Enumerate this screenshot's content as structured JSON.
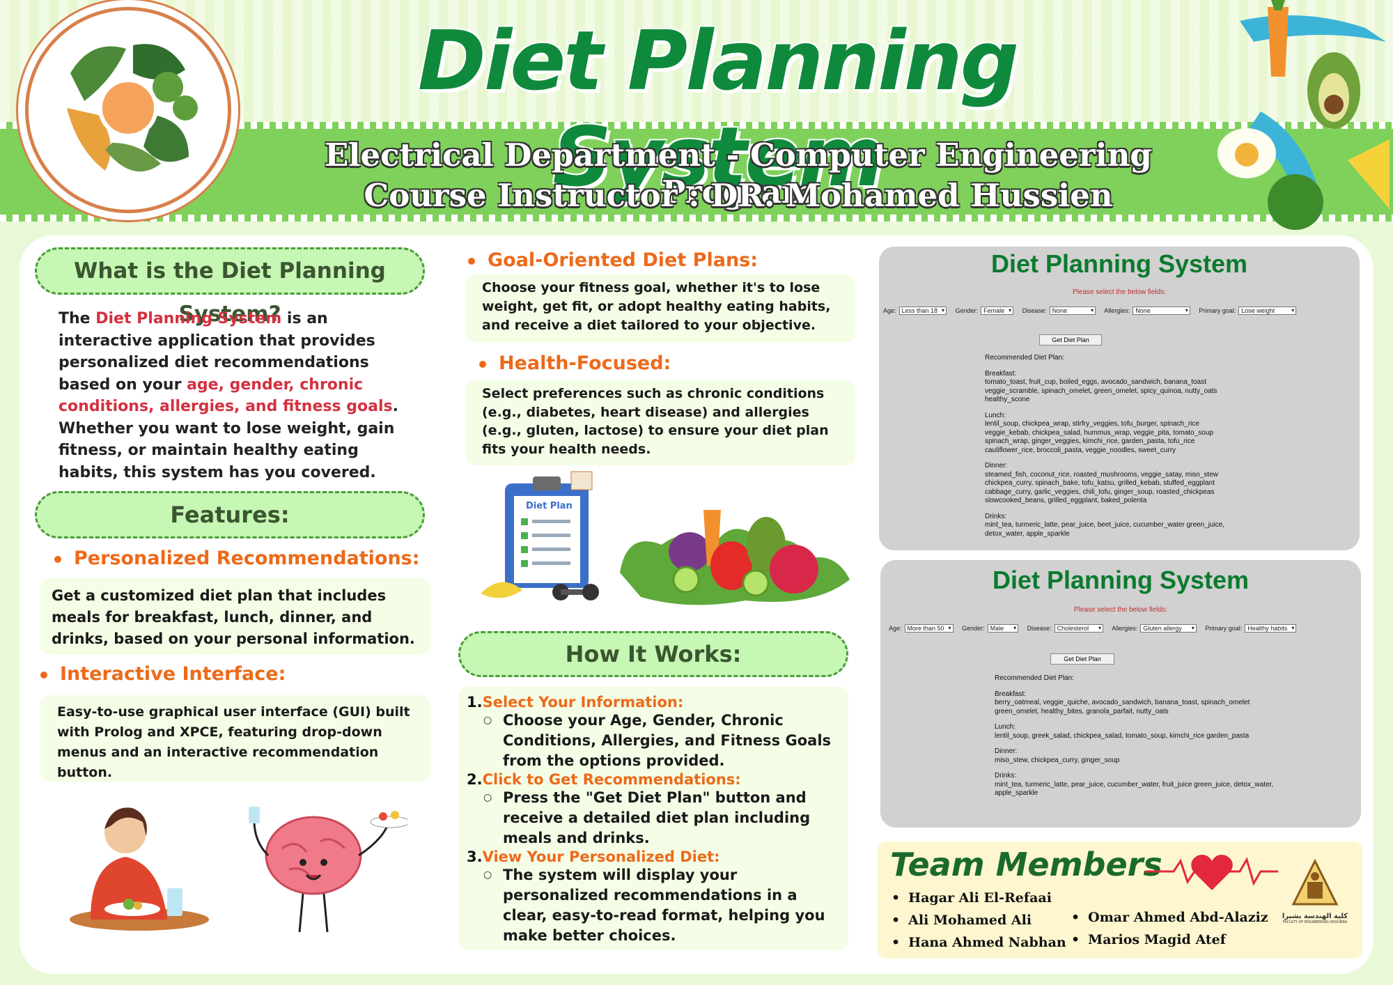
{
  "header": {
    "title": "Diet Planning System",
    "line1": "Electrical Department - Computer Engineering  Program",
    "line2": "Course Instructor : DR.  Mohamed Hussien"
  },
  "what": {
    "heading": "What is the Diet Planning System?",
    "p_the": "The ",
    "p_name": "Diet Planning System",
    "p_mid": " is an interactive application that provides personalized diet recommendations based on your ",
    "p_factors": "age, gender, chronic conditions, allergies, and fitness goals",
    "p_end": ". Whether you want to lose weight, gain fitness, or maintain healthy eating habits, this system has you covered."
  },
  "features": {
    "heading": "Features:",
    "items": [
      {
        "title": "Personalized Recommendations:",
        "text": "Get a customized diet plan that includes meals for breakfast, lunch, dinner, and drinks, based on your personal information."
      },
      {
        "title": "Interactive Interface:",
        "text": "Easy-to-use graphical user interface (GUI) built with Prolog and XPCE, featuring drop-down menus and an interactive recommendation button."
      },
      {
        "title": "Goal-Oriented Diet Plans:",
        "text": "Choose your fitness goal, whether it's to lose weight, get fit, or adopt healthy eating habits, and receive a diet tailored to your objective."
      },
      {
        "title": "Health-Focused:",
        "text": "Select preferences such as chronic conditions (e.g., diabetes, heart disease) and allergies (e.g., gluten, lactose) to ensure your diet plan fits your health needs."
      }
    ]
  },
  "clipboard_label": "Diet Plan",
  "how": {
    "heading": "How It Works:",
    "steps": [
      {
        "num": "1.",
        "title": "Select Your Information:",
        "text": "Choose your Age, Gender, Chronic Conditions, Allergies, and Fitness Goals from the options provided."
      },
      {
        "num": "2.",
        "title": "Click to Get Recommendations:",
        "text": "Press the \"Get Diet Plan\" button and receive a detailed diet plan including meals and drinks."
      },
      {
        "num": "3.",
        "title": "View Your Personalized Diet:",
        "text": "The system will display your personalized recommendations in a clear, easy-to-read format, helping you make better choices."
      }
    ]
  },
  "screens": [
    {
      "title": "Diet Planning System",
      "prompt": "Please select the below fields:",
      "labels": {
        "age": "Age:",
        "gender": "Gender:",
        "disease": "Disease:",
        "allergies": "Allergies:",
        "goal": "Primary goal:"
      },
      "values": {
        "age": "Less than 18",
        "gender": "Female",
        "disease": "None",
        "allergies": "None",
        "goal": "Lose weight"
      },
      "button": "Get Diet Plan",
      "rec_heading": "Recommended Diet Plan:",
      "breakfast_label": "Breakfast:",
      "breakfast": "tomato_toast, fruit_cup, boiled_eggs, avocado_sandwich, banana_toast veggie_scramble, spinach_omelet, green_omelet, spicy_quinoa, nutty_oats healthy_scone",
      "lunch_label": "Lunch:",
      "lunch": "lentil_soup, chickpea_wrap, stirfry_veggies, tofu_burger, spinach_rice veggie_kebab, chickpea_salad, hummus_wrap, veggie_pita, tomato_soup spinach_wrap, ginger_veggies, kimchi_rice, garden_pasta, tofu_rice cauliflower_rice, broccoli_pasta, veggie_noodles, sweet_curry",
      "dinner_label": "Dinner:",
      "dinner": "steamed_fish, coconut_rice, roasted_mushrooms, veggie_satay, miso_stew chickpea_curry, spinach_bake, tofu_katsu, grilled_kebab, stuffed_eggplant cabbage_curry, garlic_veggies, chili_tofu, ginger_soup, roasted_chickpeas slowcooked_beans, grilled_eggplant, baked_polenta",
      "drinks_label": "Drinks:",
      "drinks": "mint_tea, turmeric_latte, pear_juice, beet_juice, cucumber_water green_juice, detox_water, apple_sparkle"
    },
    {
      "title": "Diet Planning System",
      "prompt": "Please select the below fields:",
      "labels": {
        "age": "Age:",
        "gender": "Gender:",
        "disease": "Disease:",
        "allergies": "Allergies:",
        "goal": "Primary goal:"
      },
      "values": {
        "age": "More than 50",
        "gender": "Male",
        "disease": "Cholesterol",
        "allergies": "Gluten allergy",
        "goal": "Healthy habits"
      },
      "button": "Get Diet Plan",
      "rec_heading": "Recommended Diet Plan:",
      "breakfast_label": "Breakfast:",
      "breakfast": "berry_oatmeal, veggie_quiche, avocado_sandwich, banana_toast, spinach_omelet green_omelet, healthy_bites, granola_parfait, nutty_oats",
      "lunch_label": "Lunch:",
      "lunch": "lentil_soup, greek_salad, chickpea_salad, tomato_soup, kimchi_rice garden_pasta",
      "dinner_label": "Dinner:",
      "dinner": "miso_stew, chickpea_curry, ginger_soup",
      "drinks_label": "Drinks:",
      "drinks": "mint_tea, turmeric_latte, pear_juice, cucumber_water, fruit_juice green_juice, detox_water, apple_sparkle"
    }
  ],
  "team": {
    "heading": "Team Members",
    "col1": [
      "Hagar Ali El-Refaai",
      "Ali Mohamed Ali",
      "Hana Ahmed Nabhan"
    ],
    "col2": [
      "Omar Ahmed Abd-Alaziz",
      "Marios Magid Atef"
    ],
    "logo_ar": "كلية الهندسة بشبرا",
    "logo_en": "FACULTY OF ENGINEERING-SHOUBRA"
  },
  "colors": {
    "green": "#0f8a3c",
    "orange": "#ec6a1a",
    "red": "#d43040",
    "pill": "#c6f7b4"
  }
}
